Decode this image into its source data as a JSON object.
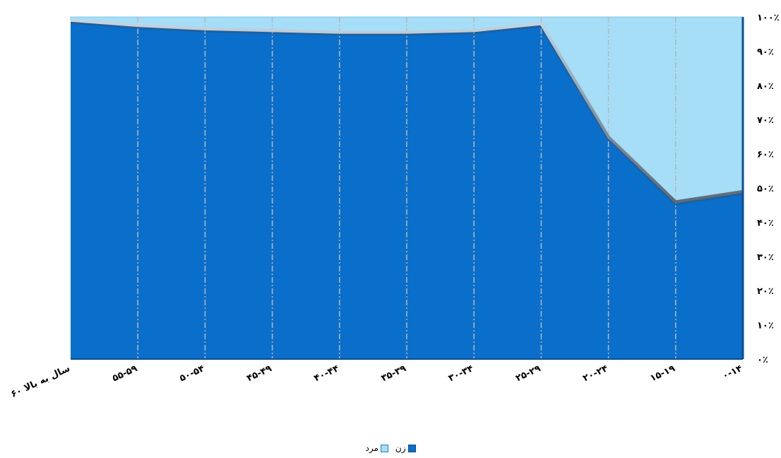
{
  "chart_data": {
    "type": "area",
    "stacked_percent": true,
    "categories": [
      "۰-۱۴",
      "۱۵-۱۹",
      "۲۰-۲۴",
      "۲۵-۲۹",
      "۳۰-۳۴",
      "۳۵-۳۹",
      "۴۰-۴۴",
      "۴۵-۴۹",
      "۵۰-۵۴",
      "۵۵-۵۹",
      "۶۰ سال به بالا"
    ],
    "series": [
      {
        "name": "زن",
        "color": "#0a6fcb",
        "values": [
          49,
          46,
          65,
          98,
          96,
          95.5,
          95.5,
          96,
          96.5,
          97.5,
          99
        ]
      },
      {
        "name": "مرد",
        "color": "#a6ddf7",
        "values": [
          51,
          54,
          35,
          2,
          4,
          4.5,
          4.5,
          4,
          3.5,
          2.5,
          1
        ]
      }
    ],
    "x_axis": {
      "reversed": true
    },
    "y_axis": {
      "position": "right",
      "ylim": [
        0,
        100
      ],
      "ticks": [
        "۰٪",
        "۱۰٪",
        "۲۰٪",
        "۳۰٪",
        "۴۰٪",
        "۵۰٪",
        "۶۰٪",
        "۷۰٪",
        "۸۰٪",
        "۹۰٪",
        "۱۰۰٪"
      ]
    },
    "grid": {
      "vertical": true,
      "style": "dashed"
    },
    "legend_position": "bottom",
    "title": "",
    "xlabel": "",
    "ylabel": ""
  }
}
